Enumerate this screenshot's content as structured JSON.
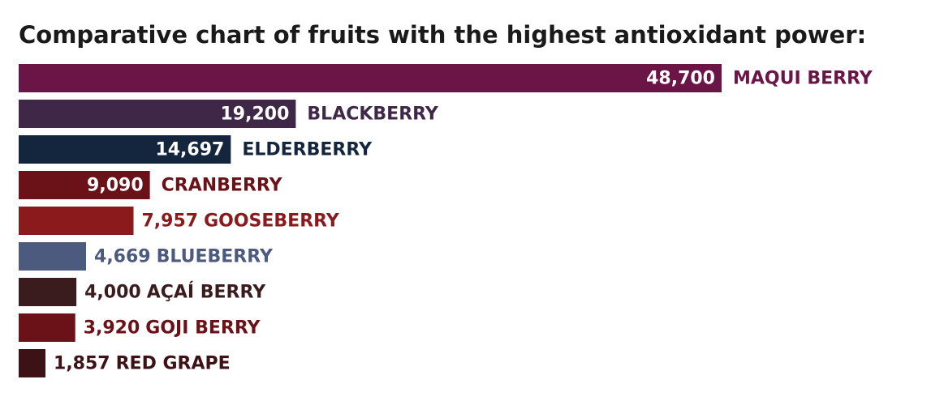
{
  "chart_data": {
    "type": "bar",
    "orientation": "horizontal",
    "title": "Comparative chart of fruits with the highest antioxidant power:",
    "categories": [
      "MAQUI BERRY",
      "BLACKBERRY",
      "ELDERBERRY",
      "CRANBERRY",
      "GOOSEBERRY",
      "BLUEBERRY",
      "AÇAÍ BERRY",
      "GOJI BERRY",
      "RED GRAPE"
    ],
    "values": [
      48700,
      19200,
      14697,
      9090,
      7957,
      4669,
      4000,
      3920,
      1857
    ],
    "value_labels": [
      "48,700",
      "19,200",
      "14,697",
      "9,090",
      "7,957",
      "4,669",
      "4,000",
      "3,920",
      "1,857"
    ],
    "colors": [
      "#6b1446",
      "#3f2748",
      "#14263d",
      "#6a1218",
      "#8b1a1d",
      "#4b5a7e",
      "#3b1c1e",
      "#6b1218",
      "#3d1217"
    ]
  }
}
